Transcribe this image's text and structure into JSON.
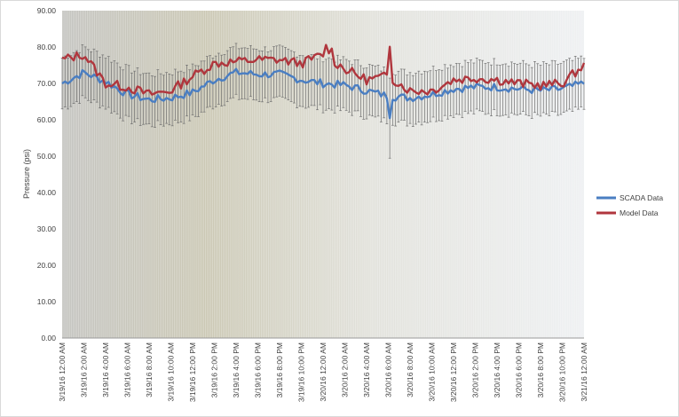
{
  "chart_data": {
    "type": "line",
    "title": "",
    "xlabel": "",
    "ylabel": "Pressure (psi)",
    "ylim": [
      0,
      90
    ],
    "yticks": [
      "0.00",
      "10.00",
      "20.00",
      "30.00",
      "40.00",
      "50.00",
      "60.00",
      "70.00",
      "80.00",
      "90.00"
    ],
    "y_grid": false,
    "x_grid": true,
    "legend_position": "right",
    "x": [
      "3/19/16 12:00 AM",
      "3/19/16 2:00 AM",
      "3/19/16 4:00 AM",
      "3/19/16 6:00 AM",
      "3/19/16 8:00 AM",
      "3/19/16 10:00 AM",
      "3/19/16 12:00 PM",
      "3/19/16 2:00 PM",
      "3/19/16 4:00 PM",
      "3/19/16 6:00 PM",
      "3/19/16 8:00 PM",
      "3/19/16 10:00 PM",
      "3/20/16 12:00 AM",
      "3/20/16 2:00 AM",
      "3/20/16 4:00 AM",
      "3/20/16 6:00 AM",
      "3/20/16 8:00 AM",
      "3/20/16 10:00 AM",
      "3/20/16 12:00 PM",
      "3/20/16 2:00 PM",
      "3/20/16 4:00 PM",
      "3/20/16 6:00 PM",
      "3/20/16 8:00 PM",
      "3/20/16 10:00 PM",
      "3/21/16 12:00 AM"
    ],
    "series": [
      {
        "name": "SCADA Data",
        "color": "#4a7ec2",
        "error_bar_halfwidth": 7,
        "values": [
          70.0,
          73.0,
          70.5,
          67.0,
          65.5,
          66.0,
          67.5,
          71.0,
          73.0,
          72.5,
          72.5,
          71.0,
          70.0,
          69.5,
          68.0,
          66.5,
          66.0,
          67.0,
          68.5,
          69.0,
          69.0,
          68.5,
          68.0,
          68.5,
          70.0
        ]
      },
      {
        "name": "Model Data",
        "color": "#b0363d",
        "values": [
          76.5,
          78.0,
          70.0,
          69.0,
          67.0,
          68.0,
          72.0,
          75.5,
          76.0,
          76.5,
          76.5,
          75.5,
          78.0,
          74.0,
          71.0,
          72.0,
          68.0,
          68.0,
          71.0,
          71.5,
          71.0,
          70.0,
          69.5,
          70.0,
          75.0
        ]
      }
    ]
  }
}
